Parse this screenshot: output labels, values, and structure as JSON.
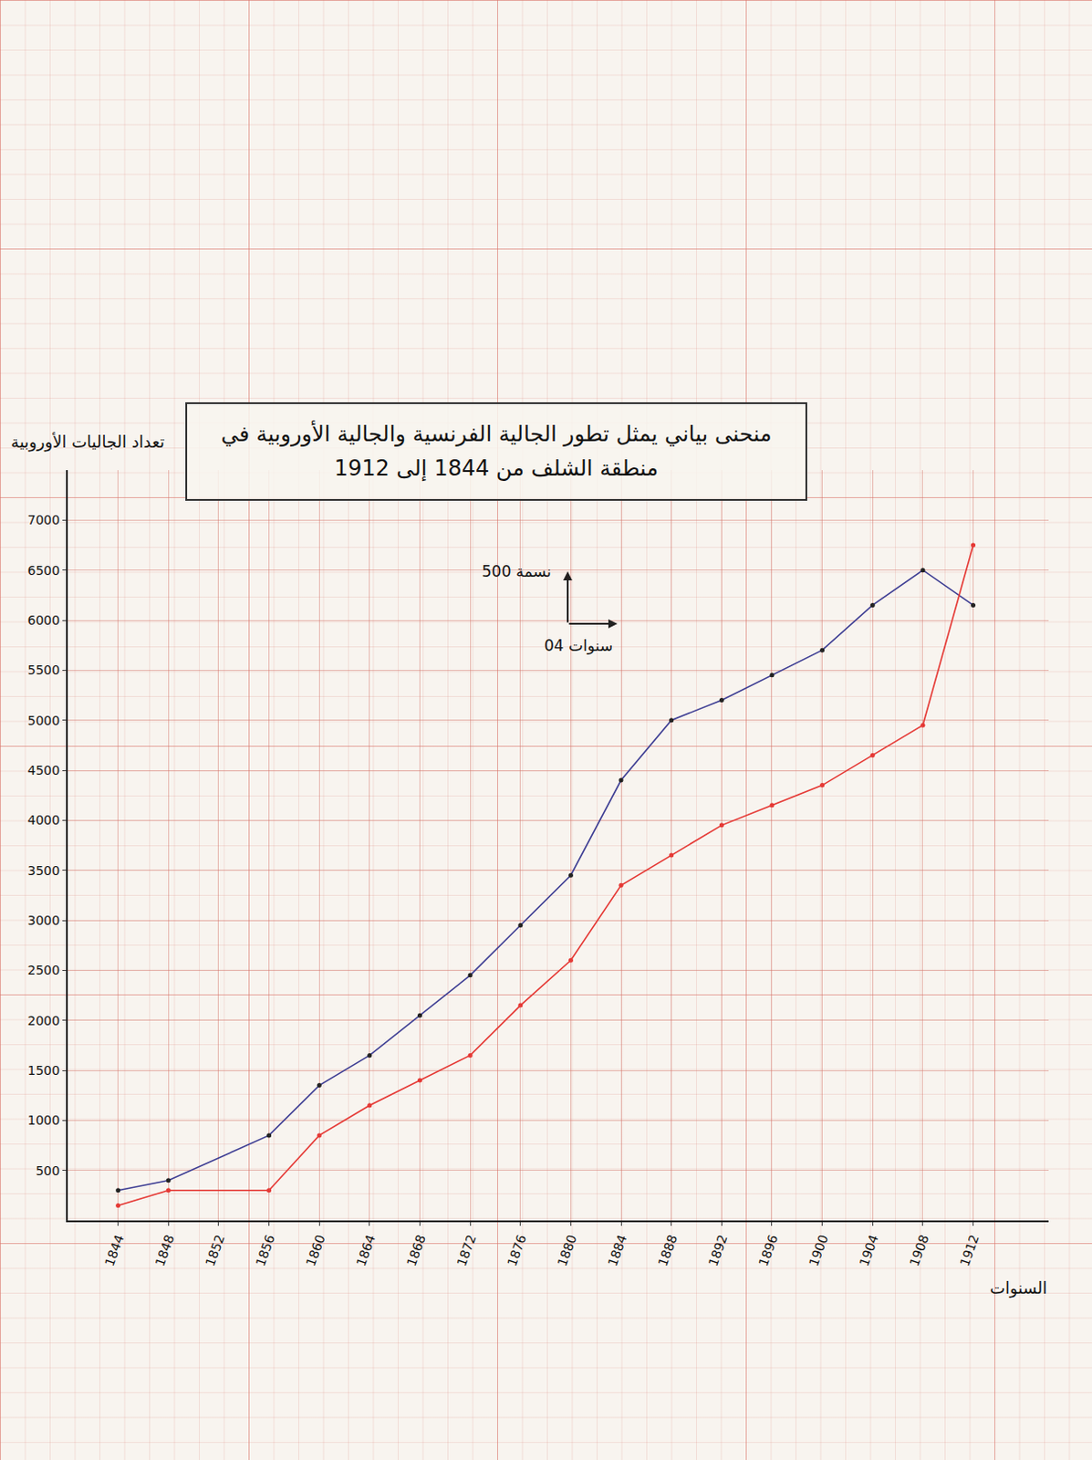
{
  "chart_data": {
    "type": "line",
    "title": "منحنى بياني يمثل تطور الجالية الفرنسية والجالية الأوروبية في منطقة الشلف من 1844 إلى 1912",
    "xlabel": "السنوات",
    "ylabel": "تعداد الجاليات الأوروبية",
    "annotations": [
      "500 نسمة",
      "04 سنوات"
    ],
    "x": [
      1844,
      1848,
      1856,
      1860,
      1864,
      1868,
      1872,
      1876,
      1880,
      1884,
      1888,
      1892,
      1896,
      1900,
      1904,
      1908,
      1912
    ],
    "series": [
      {
        "color": "#3f3f94",
        "marker": "circle",
        "line_style": "solid",
        "values": [
          300,
          400,
          850,
          1350,
          1650,
          2050,
          2450,
          2950,
          3450,
          4400,
          5000,
          5200,
          5450,
          5700,
          6150,
          6500,
          6150
        ]
      },
      {
        "color": "#e53935",
        "marker": "circle",
        "line_style": "solid",
        "values": [
          150,
          300,
          300,
          850,
          1150,
          1400,
          1650,
          2150,
          2600,
          3350,
          3650,
          3950,
          4150,
          4350,
          4650,
          4950,
          6750
        ]
      }
    ],
    "xlim": [
      1840,
      1918
    ],
    "xticks": [
      1844,
      1848,
      1852,
      1856,
      1860,
      1864,
      1868,
      1872,
      1876,
      1880,
      1884,
      1888,
      1892,
      1896,
      1900,
      1904,
      1908,
      1912
    ],
    "ylim": [
      0,
      7500
    ],
    "yticks": [
      500,
      1000,
      1500,
      2000,
      2500,
      3000,
      3500,
      4000,
      4500,
      5000,
      5500,
      6000,
      6500,
      7000
    ],
    "grid": true
  }
}
